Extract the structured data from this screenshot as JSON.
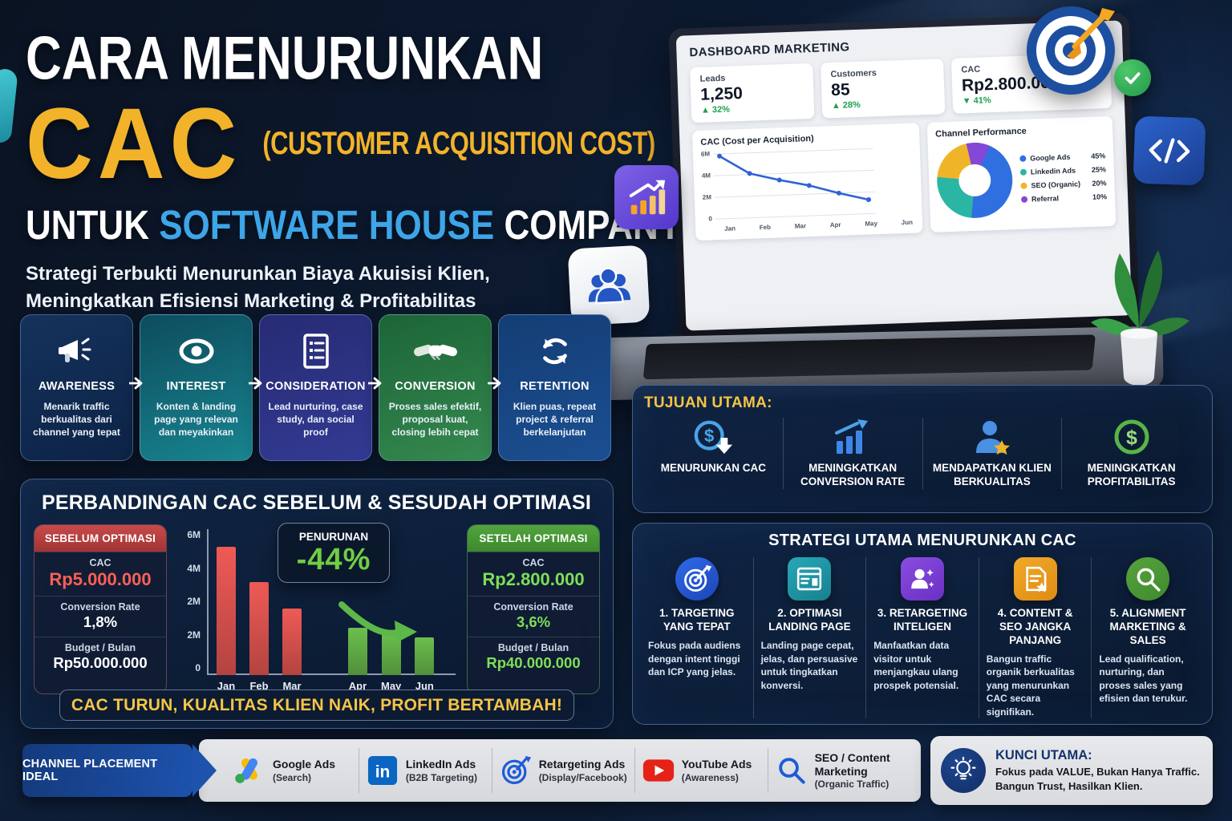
{
  "poster": {
    "title_line1": "CARA MENURUNKAN",
    "title_acronym": "CAC",
    "title_acronym_expansion": "(CUSTOMER ACQUISITION COST)",
    "title_line2_prefix": "UNTUK ",
    "title_line2_highlight": "SOFTWARE HOUSE",
    "title_line2_suffix": " COMPANY",
    "subtitle_line1": "Strategi Terbukti Menurunkan Biaya Akuisisi Klien,",
    "subtitle_line2": "Meningkatkan Efisiensi Marketing & Profitabilitas"
  },
  "dashboard": {
    "title": "DASHBOARD MARKETING",
    "stats": [
      {
        "label": "Leads",
        "value": "1,250",
        "arrow": "▲",
        "delta": "32%"
      },
      {
        "label": "Customers",
        "value": "85",
        "arrow": "▲",
        "delta": "28%"
      },
      {
        "label": "CAC",
        "value": "Rp2.800.000",
        "arrow": "▼",
        "delta": "41%"
      }
    ]
  },
  "funnel": {
    "stages": [
      {
        "name": "AWARENESS",
        "desc": "Menarik traffic berkualitas dari channel yang tepat",
        "icon": "megaphone-icon",
        "color": "#14325c"
      },
      {
        "name": "INTEREST",
        "desc": "Konten & landing page yang relevan dan meyakinkan",
        "icon": "eye-icon",
        "color": "#18858f"
      },
      {
        "name": "CONSIDERATION",
        "desc": "Lead nurturing, case study, dan social proof",
        "icon": "document-icon",
        "color": "#333a92"
      },
      {
        "name": "CONVERSION",
        "desc": "Proses sales efektif, proposal kuat, closing lebih cepat",
        "icon": "handshake-icon",
        "color": "#35894f"
      },
      {
        "name": "RETENTION",
        "desc": "Klien puas, repeat project & referral berkelanjutan",
        "icon": "refresh-icon",
        "color": "#1b4f92"
      }
    ]
  },
  "comparison": {
    "title": "PERBANDINGAN CAC SEBELUM & SESUDAH OPTIMASI",
    "before": {
      "header": "SEBELUM OPTIMASI",
      "cac_label": "CAC",
      "cac_value": "Rp5.000.000",
      "cr_label": "Conversion Rate",
      "cr_value": "1,8%",
      "budget_label": "Budget / Bulan",
      "budget_value": "Rp50.000.000"
    },
    "after": {
      "header": "SETELAH OPTIMASI",
      "cac_label": "CAC",
      "cac_value": "Rp2.800.000",
      "cr_label": "Conversion Rate",
      "cr_value": "3,6%",
      "budget_label": "Budget / Bulan",
      "budget_value": "Rp40.000.000"
    },
    "reduction": {
      "label": "PENURUNAN",
      "value": "-44%"
    },
    "banner": "CAC TURUN, KUALITAS KLIEN NAIK, PROFIT BERTAMBAH!"
  },
  "tujuan": {
    "title": "TUJUAN UTAMA:",
    "items": [
      {
        "label": "MENURUNKAN CAC",
        "icon": "dollar-decrease-icon"
      },
      {
        "label": "MENINGKATKAN CONVERSION RATE",
        "icon": "growth-chart-icon"
      },
      {
        "label": "MENDAPATKAN KLIEN BERKUALITAS",
        "icon": "client-star-icon"
      },
      {
        "label": "MENINGKATKAN PROFITABILITAS",
        "icon": "dollar-circle-icon"
      }
    ]
  },
  "strategi": {
    "title": "STRATEGI UTAMA MENURUNKAN CAC",
    "items": [
      {
        "title": "1. TARGETING YANG TEPAT",
        "desc": "Fokus pada audiens dengan intent tinggi dan ICP yang jelas.",
        "icon": "target-icon",
        "color": "#2f6ae8"
      },
      {
        "title": "2. OPTIMASI LANDING PAGE",
        "desc": "Landing page cepat, jelas, dan persuasive untuk tingkatkan konversi.",
        "icon": "landing-page-icon",
        "color": "#27a8b8"
      },
      {
        "title": "3. RETARGETING INTELIGEN",
        "desc": "Manfaatkan data visitor untuk menjangkau ulang prospek potensial.",
        "icon": "retargeting-icon",
        "color": "#8a4de0"
      },
      {
        "title": "4. CONTENT & SEO JANGKA PANJANG",
        "desc": "Bangun traffic organik berkualitas yang menurunkan CAC secara signifikan.",
        "icon": "content-seo-icon",
        "color": "#f2a92c"
      },
      {
        "title": "5. ALIGNMENT MARKETING & SALES",
        "desc": "Lead qualification, nurturing, dan proses sales yang efisien dan terukur.",
        "icon": "search-icon",
        "color": "#57a33e"
      }
    ]
  },
  "channels": {
    "label": "CHANNEL PLACEMENT IDEAL",
    "items": [
      {
        "name": "Google Ads",
        "sub": "(Search)",
        "icon": "google-ads-icon"
      },
      {
        "name": "LinkedIn Ads",
        "sub": "(B2B Targeting)",
        "icon": "linkedin-icon"
      },
      {
        "name": "Retargeting Ads",
        "sub": "(Display/Facebook)",
        "icon": "retargeting-target-icon"
      },
      {
        "name": "YouTube Ads",
        "sub": "(Awareness)",
        "icon": "youtube-icon"
      },
      {
        "name": "SEO / Content Marketing",
        "sub": "(Organic Traffic)",
        "icon": "search-magnifier-icon"
      }
    ]
  },
  "kunci": {
    "title": "KUNCI UTAMA:",
    "text": "Fokus pada VALUE, Bukan Hanya Traffic. Bangun Trust, Hasilkan Klien.",
    "icon": "lightbulb-icon"
  },
  "chart_data": [
    {
      "id": "cac-line",
      "type": "line",
      "title": "CAC (Cost per Acquisition)",
      "x": [
        "Jan",
        "Feb",
        "Mar",
        "Apr",
        "May",
        "Jun"
      ],
      "values": [
        5.8,
        4.1,
        3.4,
        2.8,
        2.0,
        1.3
      ],
      "unit": "M",
      "ylim": [
        0,
        6
      ],
      "yticks": [
        "6M",
        "4M",
        "2M",
        "0"
      ],
      "ytick_values": [
        6,
        4,
        2,
        0
      ],
      "line_color": "#2f62d8",
      "grid": true,
      "legend_position": "none"
    },
    {
      "id": "channel-donut",
      "type": "pie",
      "title": "Channel Performance",
      "slices": [
        {
          "label": "Google Ads",
          "value": 45,
          "color": "#2f6fe0"
        },
        {
          "label": "Linkedin Ads",
          "value": 25,
          "color": "#2ab5a5"
        },
        {
          "label": "SEO (Organic)",
          "value": 20,
          "color": "#f0b429"
        },
        {
          "label": "Referral",
          "value": 10,
          "color": "#8447d6"
        }
      ],
      "legend_position": "right",
      "donut": true
    },
    {
      "id": "cac-compare",
      "type": "bar",
      "title": "PERBANDINGAN CAC SEBELUM & SESUDAH OPTIMASI",
      "ylim": [
        0,
        6
      ],
      "unit": "M",
      "yticks": [
        "6M",
        "4M",
        "2M",
        "2M",
        "0"
      ],
      "groups": [
        {
          "name": "before",
          "color": "#ef5a56",
          "categories": [
            "Jan",
            "Feb",
            "Mar"
          ],
          "values": [
            5.4,
            3.9,
            2.8
          ]
        },
        {
          "name": "after",
          "color": "#6cbf4e",
          "categories": [
            "Apr",
            "May",
            "Jun"
          ],
          "values": [
            2.0,
            1.8,
            1.6
          ]
        }
      ],
      "grid": false,
      "legend_position": "none"
    }
  ],
  "colors": {
    "accent_yellow": "#f2b32a",
    "accent_blue": "#3da5e8",
    "negative_red": "#ff5f57",
    "positive_green": "#6fce44",
    "panel_navy": "#0d2240",
    "channel_bar_gray": "#dfe1e4",
    "delta_green": "#1ea24e"
  }
}
